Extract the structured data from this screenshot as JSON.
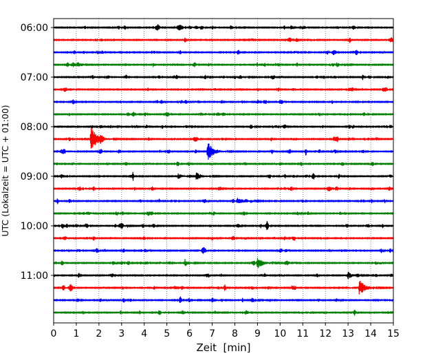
{
  "chart_data": {
    "type": "line",
    "chart_kind": "helicorder-seismogram",
    "xlabel": "Zeit  [min]",
    "ylabel": "UTC (Lokalzeit = UTC + 01:00)",
    "xlim": [
      0,
      15
    ],
    "x_ticks": [
      "0",
      "1",
      "2",
      "3",
      "4",
      "5",
      "6",
      "7",
      "8",
      "9",
      "10",
      "11",
      "12",
      "13",
      "14",
      "15"
    ],
    "y_tick_labels": [
      "06:00",
      "07:00",
      "08:00",
      "09:00",
      "10:00",
      "11:00"
    ],
    "trace_start_time": "06:00",
    "trace_interval_min": 15,
    "trace_count": 24,
    "trace_colors": [
      "#000000",
      "#ff0000",
      "#0000ff",
      "#008000"
    ],
    "vertical_grid": true,
    "grid_style": "dotted",
    "events": [
      {
        "trace": 9,
        "minute": 1.65,
        "amplitude": 1.9,
        "duration_min": 0.6
      },
      {
        "trace": 10,
        "minute": 6.8,
        "amplitude": 1.6,
        "duration_min": 0.5
      },
      {
        "trace": 19,
        "minute": 9.0,
        "amplitude": 0.9,
        "duration_min": 0.5
      },
      {
        "trace": 19,
        "minute": 5.8,
        "amplitude": 0.6,
        "duration_min": 0.3
      },
      {
        "trace": 21,
        "minute": 13.5,
        "amplitude": 1.3,
        "duration_min": 0.5
      },
      {
        "trace": 20,
        "minute": 13.0,
        "amplitude": 0.6,
        "duration_min": 0.4
      },
      {
        "trace": 14,
        "minute": 8.1,
        "amplitude": 0.5,
        "duration_min": 0.6
      },
      {
        "trace": 12,
        "minute": 6.3,
        "amplitude": 0.6,
        "duration_min": 0.5
      },
      {
        "trace": 12,
        "minute": 5.5,
        "amplitude": 0.4,
        "duration_min": 0.4
      },
      {
        "trace": 16,
        "minute": 2.9,
        "amplitude": 0.45,
        "duration_min": 0.3
      },
      {
        "trace": 22,
        "minute": 7.0,
        "amplitude": 0.45,
        "duration_min": 0.3
      },
      {
        "trace": 8,
        "minute": 8.7,
        "amplitude": 0.4,
        "duration_min": 0.2
      },
      {
        "trace": 4,
        "minute": 8.2,
        "amplitude": 0.35,
        "duration_min": 0.4
      },
      {
        "trace": 3,
        "minute": 12.5,
        "amplitude": 0.35,
        "duration_min": 0.4
      },
      {
        "trace": 0,
        "minute": 7.8,
        "amplitude": 0.35,
        "duration_min": 0.3
      }
    ]
  }
}
